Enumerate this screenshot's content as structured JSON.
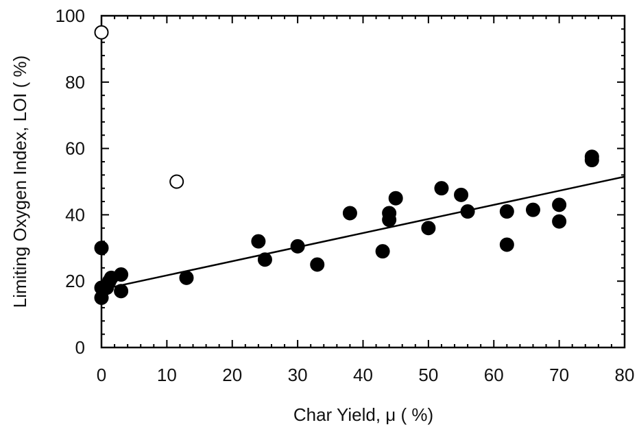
{
  "chart_data": {
    "type": "scatter",
    "title": "",
    "xlabel": "Char Yield, μ  ( %)",
    "ylabel": "Limiting Oxygen Index, LOI  ( %)",
    "xlim": [
      0,
      80
    ],
    "ylim": [
      0,
      100
    ],
    "x_ticks": [
      "0",
      "10",
      "20",
      "30",
      "40",
      "50",
      "60",
      "70",
      "80"
    ],
    "y_ticks": [
      "0",
      "20",
      "40",
      "60",
      "80",
      "100"
    ],
    "grid": false,
    "legend": "none",
    "series": [
      {
        "marker": "filled-circle",
        "color": "#000000",
        "points": [
          [
            0,
            30
          ],
          [
            0,
            18
          ],
          [
            0,
            15
          ],
          [
            0.8,
            18
          ],
          [
            1.2,
            20
          ],
          [
            1.5,
            21
          ],
          [
            3,
            22
          ],
          [
            3,
            17
          ],
          [
            13,
            21
          ],
          [
            24,
            32
          ],
          [
            25,
            26.5
          ],
          [
            30,
            30.5
          ],
          [
            33,
            25
          ],
          [
            38,
            40.5
          ],
          [
            43,
            29
          ],
          [
            44,
            38.5
          ],
          [
            44,
            40.5
          ],
          [
            45,
            45
          ],
          [
            50,
            36
          ],
          [
            52,
            48
          ],
          [
            55,
            46
          ],
          [
            56,
            41
          ],
          [
            62,
            41
          ],
          [
            62,
            31
          ],
          [
            66,
            41.5
          ],
          [
            70,
            43
          ],
          [
            70,
            38
          ],
          [
            75,
            57.5
          ],
          [
            75,
            56.5
          ]
        ]
      },
      {
        "marker": "open-circle",
        "color": "#000000",
        "points": [
          [
            0,
            95
          ],
          [
            11.5,
            50
          ]
        ]
      }
    ],
    "fit_line": {
      "x": [
        0,
        80
      ],
      "y": [
        17.5,
        51.5
      ]
    }
  }
}
